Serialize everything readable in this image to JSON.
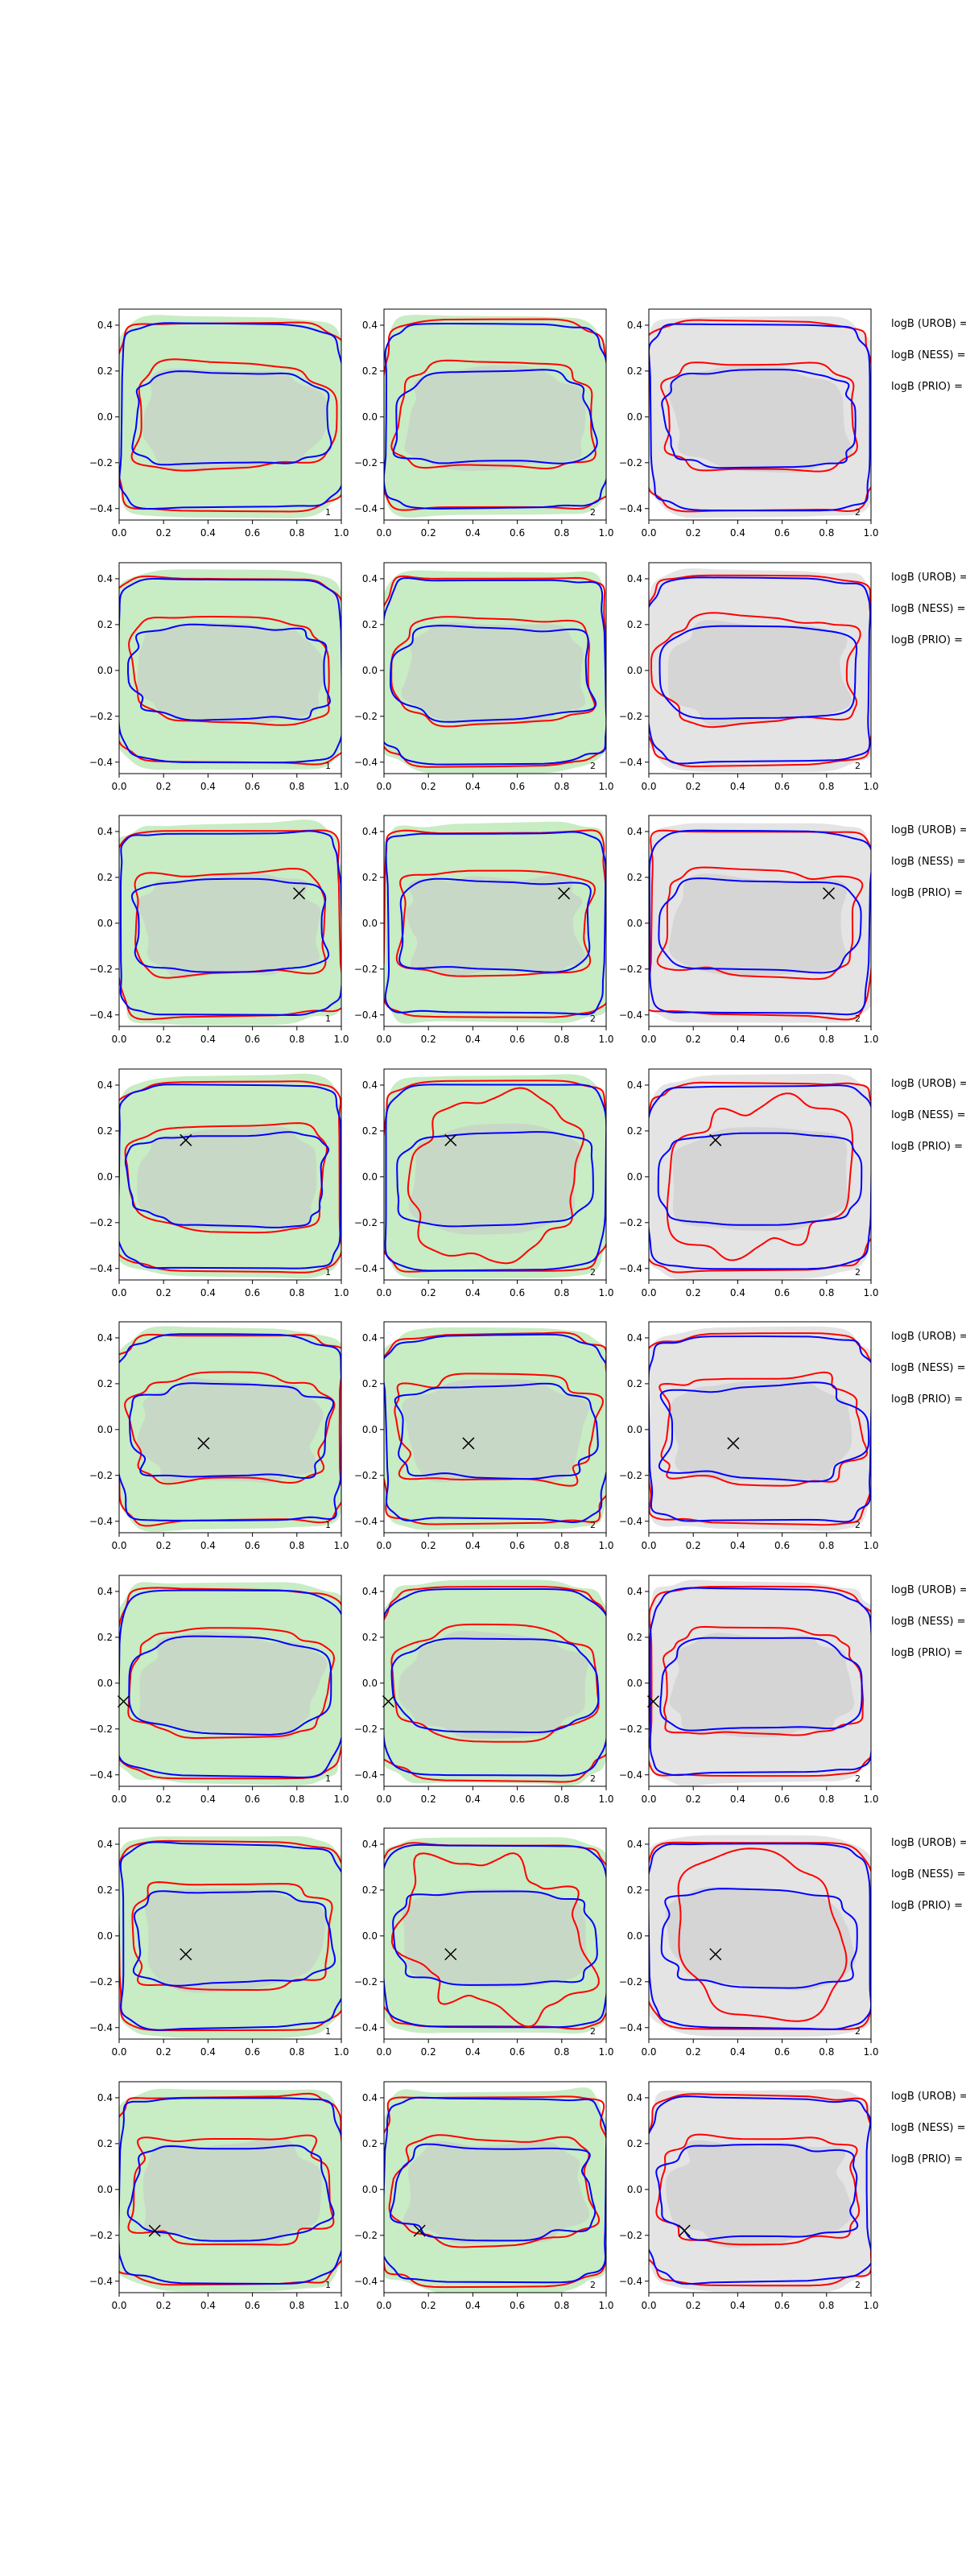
{
  "chart_data": {
    "type": "contour",
    "grid": false,
    "rows": 8,
    "columns": 3,
    "xlim": [
      0.0,
      1.0
    ],
    "ylim": [
      -0.45,
      0.47
    ],
    "xticks": [
      "0.0",
      "0.2",
      "0.4",
      "0.6",
      "0.8",
      "1.0"
    ],
    "yticks": [
      "0.4",
      "0.2",
      "0.0",
      "−0.2",
      "−0.4"
    ],
    "column_panel_labels": [
      "1",
      "2",
      "2"
    ],
    "column_backgrounds": [
      "#c8ecc3",
      "#c8ecc3",
      "#e4e4e4"
    ],
    "series_colors": {
      "outer_red": "#ff0000",
      "inner_red": "#ff0000",
      "outer_blue": "#0000ff",
      "inner_blue": "#0000ff",
      "shading": "#c8c8c8"
    },
    "side_labels": [
      "logB (UROB) =",
      "logB (NESS) =",
      "logB (PRIO) ="
    ],
    "marker_symbol": "×",
    "markers": [
      null,
      null,
      [
        0.81,
        0.13
      ],
      [
        0.3,
        0.16
      ],
      [
        0.38,
        -0.06
      ],
      [
        0.02,
        -0.08
      ],
      [
        0.3,
        -0.08
      ],
      [
        0.16,
        -0.18
      ]
    ]
  }
}
